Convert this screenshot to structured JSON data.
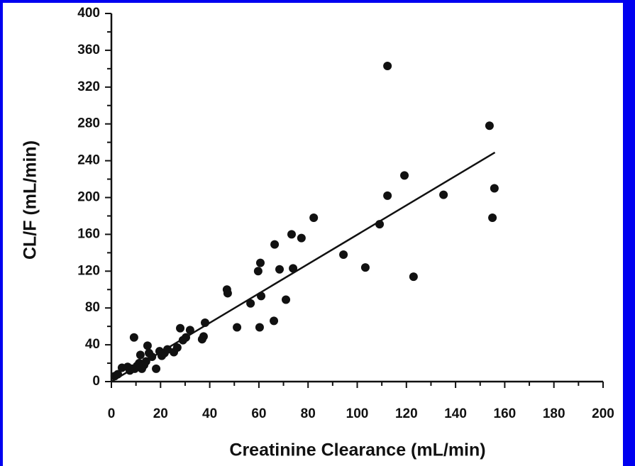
{
  "chart_data": {
    "type": "scatter",
    "xlabel": "Creatinine Clearance (mL/min)",
    "ylabel": "CL/F (mL/min)",
    "color": "#111111",
    "xlim": [
      0,
      200
    ],
    "ylim": [
      0,
      400
    ],
    "xticks": [
      0,
      20,
      40,
      60,
      80,
      100,
      120,
      140,
      160,
      180,
      200
    ],
    "yticks": [
      0,
      40,
      80,
      120,
      160,
      200,
      240,
      280,
      320,
      360,
      400
    ],
    "x": [
      1.4,
      2.6,
      4.3,
      6.6,
      7.5,
      8.4,
      9.2,
      9.5,
      10.4,
      11.3,
      11.8,
      12.4,
      13.3,
      14.1,
      14.7,
      15.3,
      16.5,
      18.2,
      19.6,
      20.5,
      21.6,
      22.8,
      25.4,
      26.8,
      28,
      29.1,
      30.3,
      32,
      36.9,
      37.5,
      38.1,
      47,
      47.3,
      51.1,
      56.6,
      59.7,
      60.6,
      60.3,
      60.9,
      66.4,
      66.1,
      68.4,
      71,
      73.3,
      73.9,
      77.3,
      82.3,
      94.4,
      103.3,
      109.1,
      112.3,
      112.3,
      119.2,
      122.9,
      135.1,
      153.8,
      155,
      155.8
    ],
    "values": [
      6,
      8,
      15,
      16,
      12,
      14,
      48,
      14,
      17,
      20,
      29,
      14,
      18,
      22,
      39,
      31,
      27,
      14,
      33,
      28,
      31,
      35,
      32,
      37,
      58,
      45,
      48,
      56,
      46,
      49,
      64,
      100,
      96,
      59,
      85,
      120,
      129,
      59,
      93,
      149,
      66,
      122,
      89,
      160,
      123,
      156,
      178,
      138,
      124,
      171,
      343,
      202,
      224,
      114,
      203,
      278,
      178,
      210
    ],
    "fit": {
      "x": [
        0,
        156
      ],
      "values": [
        0,
        249
      ]
    }
  }
}
